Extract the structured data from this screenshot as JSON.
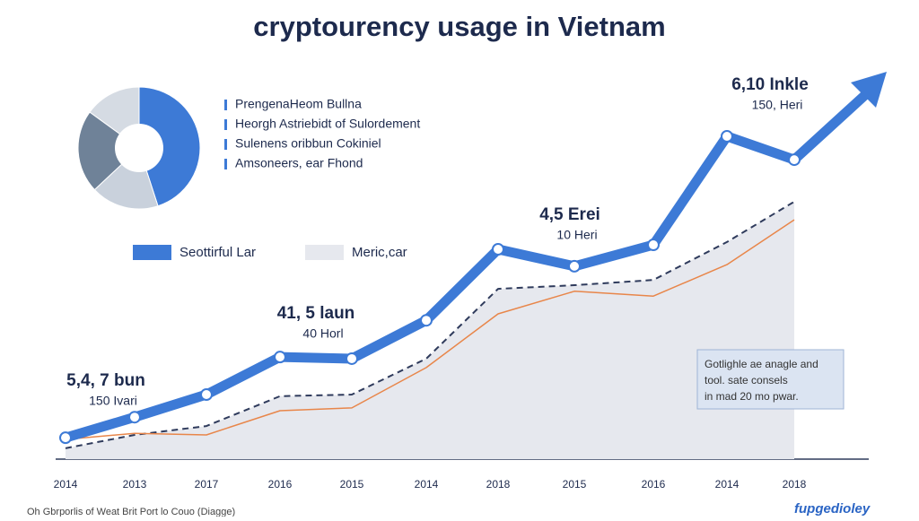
{
  "chart_data": [
    {
      "type": "line",
      "title": "cryptourency usage in Vietnam",
      "categories": [
        "2014",
        "2013",
        "2017",
        "2016",
        "2015",
        "2014",
        "2018",
        "2015",
        "2016",
        "2014",
        "2018"
      ],
      "ylim": [
        0,
        100
      ],
      "series": [
        {
          "name": "Meric,car",
          "color": "#2f3b5c",
          "area": true,
          "area_color": "#e6e8ee",
          "dashed": true,
          "values": [
            2.7,
            6,
            8.2,
            15.6,
            16,
            24.9,
            42.2,
            43.1,
            44.4,
            53.8,
            63.8
          ]
        },
        {
          "color": "#e8864a",
          "values": [
            4.9,
            6.4,
            6,
            12,
            12.7,
            22.7,
            36,
            41.6,
            40.4,
            48.2,
            59.3
          ]
        },
        {
          "name": "Seottirful Lar",
          "color": "#3d7ad6",
          "values": [
            5.3,
            10.4,
            16,
            25.3,
            24.9,
            34.4,
            52,
            47.8,
            53.1,
            80,
            74.2
          ]
        }
      ],
      "annotations": [
        [
          "5,4, 7 bun",
          "150 Ivari"
        ],
        [
          "41, 5 laun",
          "40 Horl"
        ],
        [
          "4,5 Erei",
          "10 Heri"
        ],
        [
          "6,10 Inkle",
          "150, Heri"
        ]
      ],
      "note": [
        "Gotlighle ae anagle and",
        "tool. sate consels",
        "in mad 20 mo pwar."
      ],
      "footnote": "Oh Gbrporlis of Weat Brit Port lo Couo (Diagge)",
      "logo": "fupgedioley"
    },
    {
      "type": "pie",
      "categories": [
        "PrengenaHeom Bullna",
        "Heorgh Astriebidt of Sulordement",
        "Sulenens oribbun Cokiniel",
        "Amsoneers, ear Fhond"
      ],
      "values": [
        45,
        18,
        22,
        15
      ],
      "colors": [
        "#3d7ad6",
        "#c9d1dc",
        "#6f8298",
        "#d5dbe3"
      ]
    }
  ]
}
